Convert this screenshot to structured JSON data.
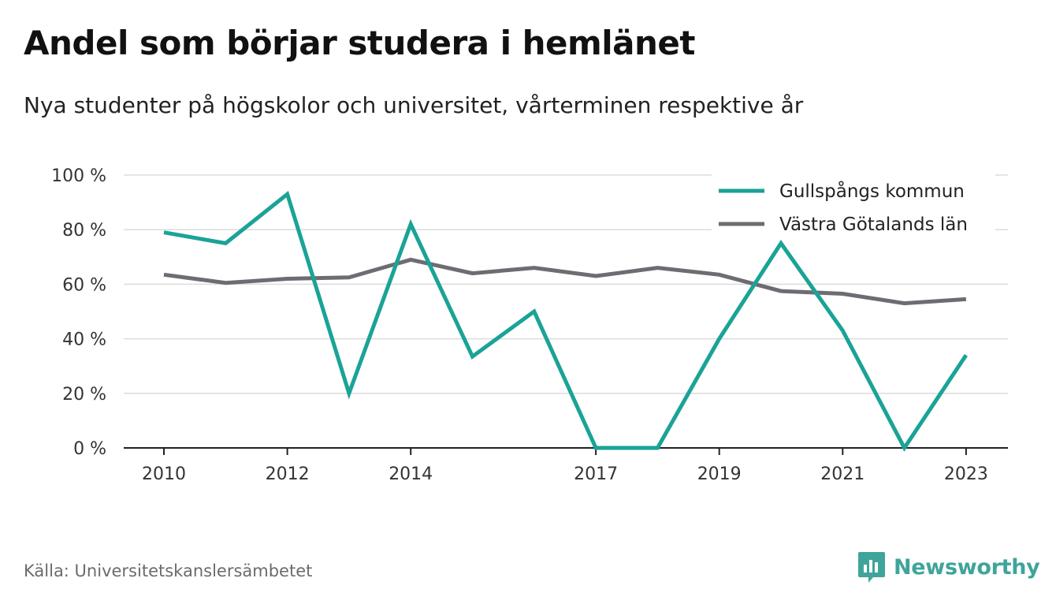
{
  "title": "Andel som börjar studera i hemlänet",
  "subtitle": "Nya studenter på högskolor och universitet, vårterminen respektive år",
  "source": "Källa: Universitetskanslersämbetet",
  "brand": {
    "name": "Newsworthy",
    "icon": "newsworthy-logo-icon",
    "color": "#3fa49a"
  },
  "chart_data": {
    "type": "line",
    "x": [
      2010,
      2011,
      2012,
      2013,
      2014,
      2015,
      2016,
      2017,
      2018,
      2019,
      2020,
      2021,
      2022,
      2023
    ],
    "x_tick_labels": [
      "2010",
      "2012",
      "2014",
      "2017",
      "2019",
      "2021",
      "2023"
    ],
    "y_tick_labels": [
      "0 %",
      "20 %",
      "40 %",
      "60 %",
      "80 %",
      "100 %"
    ],
    "y_ticks": [
      0,
      20,
      40,
      60,
      80,
      100
    ],
    "ylim": [
      0,
      100
    ],
    "xlim": [
      2009.35,
      2023.7
    ],
    "grid": true,
    "legend_position": "top-right",
    "series": [
      {
        "name": "Gullspångs kommun",
        "color": "#1aa396",
        "values": [
          79,
          75,
          93,
          20,
          82,
          33.5,
          50,
          0,
          0,
          40,
          75,
          43,
          0,
          34
        ]
      },
      {
        "name": "Västra Götalands län",
        "color": "#6e6c72",
        "values": [
          63.5,
          60.5,
          62,
          62.5,
          69,
          64,
          66,
          63,
          66,
          63.5,
          57.5,
          56.5,
          53,
          54.5
        ]
      }
    ]
  }
}
